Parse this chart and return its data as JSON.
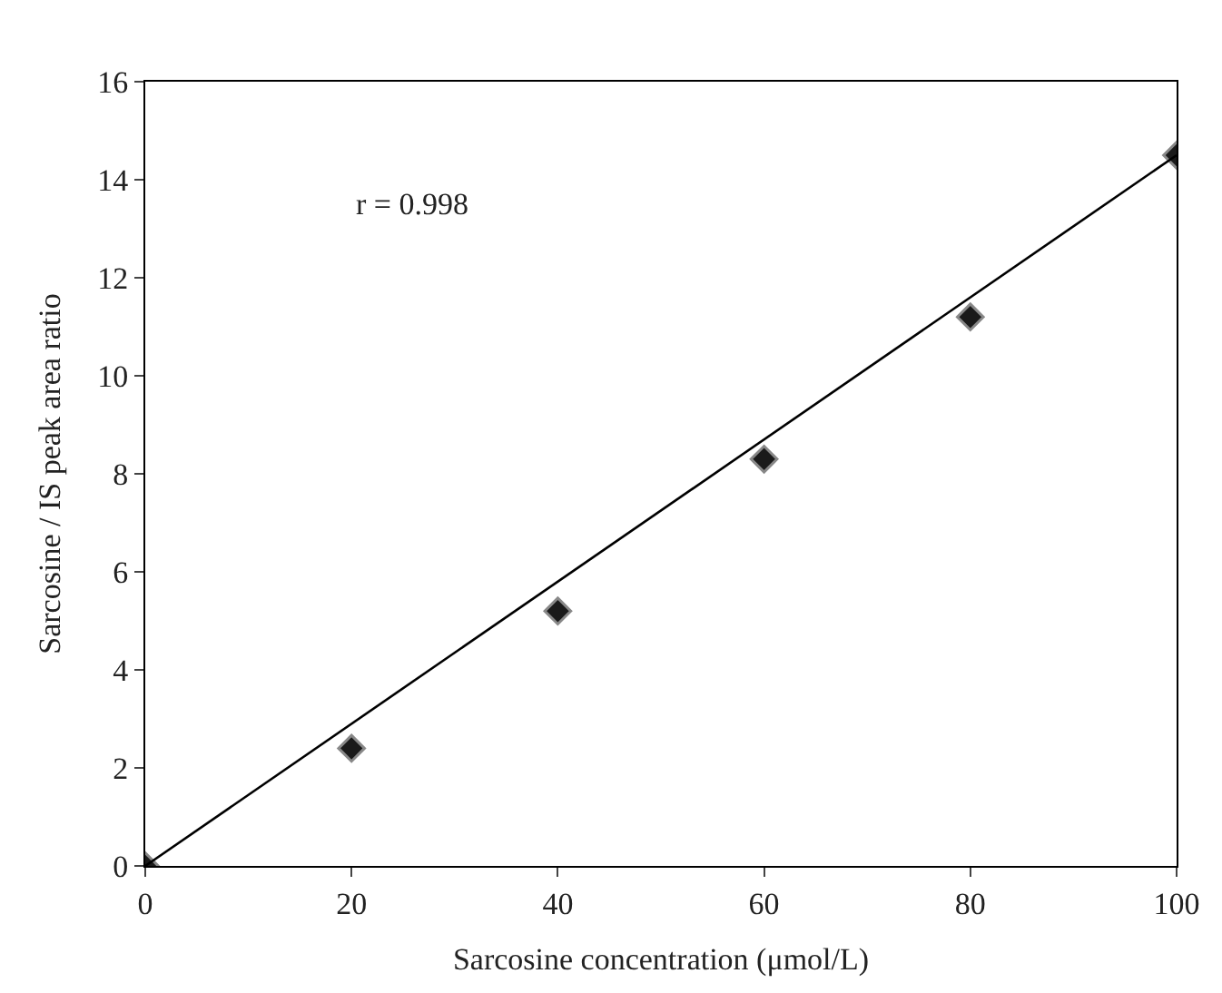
{
  "chart_data": {
    "type": "scatter",
    "xlabel": "Sarcosine concentration (μmol/L)",
    "ylabel": "Sarcosine / IS peak area ratio",
    "x": [
      0,
      20,
      40,
      60,
      80,
      100
    ],
    "series": [
      {
        "color": "#1a1a1a",
        "values": [
          0,
          2.4,
          5.2,
          8.3,
          11.2,
          14.5
        ],
        "marker": "diamond"
      },
      {
        "type": "line",
        "color": "#000000",
        "x": [
          0,
          100
        ],
        "values": [
          0,
          14.5
        ],
        "line_style": "solid",
        "marker": "none"
      }
    ],
    "xlim": [
      0,
      100
    ],
    "xticks": [
      0,
      20,
      40,
      60,
      80,
      100
    ],
    "ylim": [
      0,
      16
    ],
    "yticks": [
      0,
      2,
      4,
      6,
      8,
      10,
      12,
      14,
      16
    ],
    "annotations": [
      "r = 0.998"
    ],
    "grid": false,
    "legend": false
  }
}
